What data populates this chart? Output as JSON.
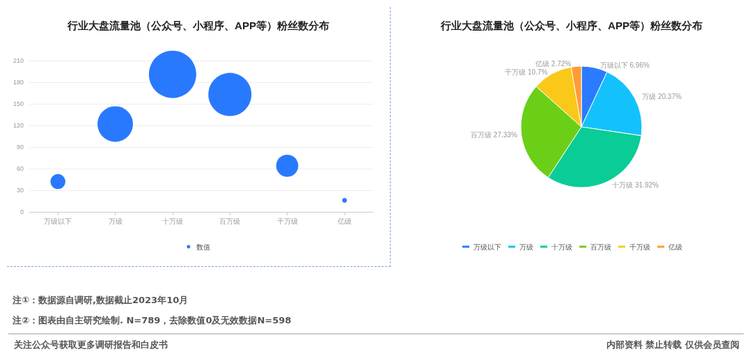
{
  "chart_data": [
    {
      "type": "bubble",
      "title": "行业大盘流量池（公众号、小程序、APP等）粉丝数分布",
      "categories": [
        "万级以下",
        "万级",
        "十万级",
        "百万级",
        "千万级",
        "亿级"
      ],
      "series": [
        {
          "name": "数值",
          "color": "#2979ff",
          "values": [
            42,
            122,
            191,
            163,
            64,
            16
          ],
          "sizes": [
            0.1,
            0.56,
            1,
            0.83,
            0.22,
            0.01
          ]
        }
      ],
      "ylim": [
        0,
        210
      ],
      "yticks": [
        0,
        30,
        60,
        90,
        120,
        150,
        180,
        210
      ],
      "grid": "y",
      "legend": "bottom",
      "marker": "circle",
      "annotations": [
        "注①：数据源自调研,数据截止2023年10月",
        "注②：图表由自主研究绘制. N=789，去除数值0及无效数据N=598",
        "关注公众号获取更多调研报告和白皮书",
        "内部资料 禁止转载 仅供会员查阅"
      ]
    },
    {
      "type": "pie",
      "title": "行业大盘流量池（公众号、小程序、APP等）粉丝数分布",
      "categories": [
        "万级以下",
        "万级",
        "十万级",
        "百万级",
        "千万级",
        "亿级"
      ],
      "values": [
        6.96,
        20.37,
        31.92,
        27.33,
        10.7,
        2.72
      ],
      "value_labels": [
        "6.96%",
        "20.37%",
        "31.92%",
        "27.33%",
        "10.7%",
        "2.72%"
      ],
      "colors": [
        "#2b7bff",
        "#13c2fc",
        "#0acc96",
        "#6ccf17",
        "#f9c818",
        "#ff9b35"
      ],
      "legend": "bottom"
    }
  ]
}
